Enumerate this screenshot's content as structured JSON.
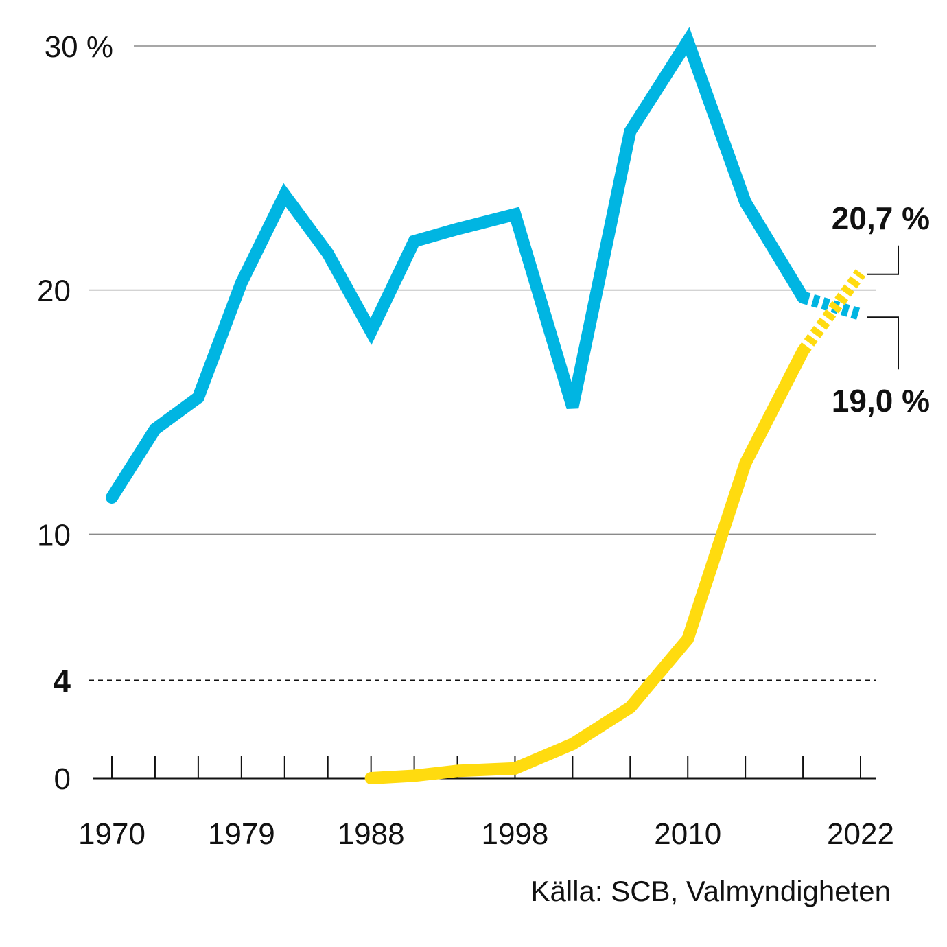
{
  "chart_data": {
    "type": "line",
    "xlim": [
      1970,
      2022
    ],
    "ylim": [
      0,
      30
    ],
    "y_ticks": [
      {
        "value": 30,
        "label": "30 %"
      },
      {
        "value": 20,
        "label": "20"
      },
      {
        "value": 10,
        "label": "10"
      },
      {
        "value": 0,
        "label": "0"
      }
    ],
    "threshold": {
      "value": 4,
      "label": "4"
    },
    "x_tick_years": [
      1970,
      1973,
      1976,
      1979,
      1982,
      1985,
      1988,
      1991,
      1994,
      1998,
      2002,
      2006,
      2010,
      2014,
      2018,
      2022
    ],
    "x_tick_labels": [
      "1970",
      "1979",
      "1988",
      "1998",
      "2010",
      "2022"
    ],
    "grid": true,
    "series": [
      {
        "color": "#00b5e2",
        "points": [
          [
            1970,
            11.5
          ],
          [
            1973,
            14.3
          ],
          [
            1976,
            15.6
          ],
          [
            1979,
            20.3
          ],
          [
            1982,
            23.9
          ],
          [
            1985,
            21.5
          ],
          [
            1988,
            18.3
          ],
          [
            1991,
            22.0
          ],
          [
            1994,
            22.5
          ],
          [
            1998,
            23.1
          ],
          [
            2002,
            15.2
          ],
          [
            2006,
            26.5
          ],
          [
            2010,
            30.2
          ],
          [
            2014,
            23.6
          ],
          [
            2018,
            19.7
          ]
        ],
        "projection": [
          [
            2018,
            19.7
          ],
          [
            2022,
            19.0
          ]
        ],
        "end_label": "19,0 %"
      },
      {
        "color": "#ffdb0f",
        "points": [
          [
            1988,
            0.0
          ],
          [
            1991,
            0.1
          ],
          [
            1994,
            0.3
          ],
          [
            1998,
            0.4
          ],
          [
            2002,
            1.4
          ],
          [
            2006,
            2.9
          ],
          [
            2010,
            5.7
          ],
          [
            2014,
            12.9
          ],
          [
            2018,
            17.5
          ]
        ],
        "projection": [
          [
            2018,
            17.5
          ],
          [
            2022,
            20.7
          ]
        ],
        "end_label": "20,7 %"
      }
    ],
    "source": "Källa: SCB, Valmyndigheten"
  }
}
